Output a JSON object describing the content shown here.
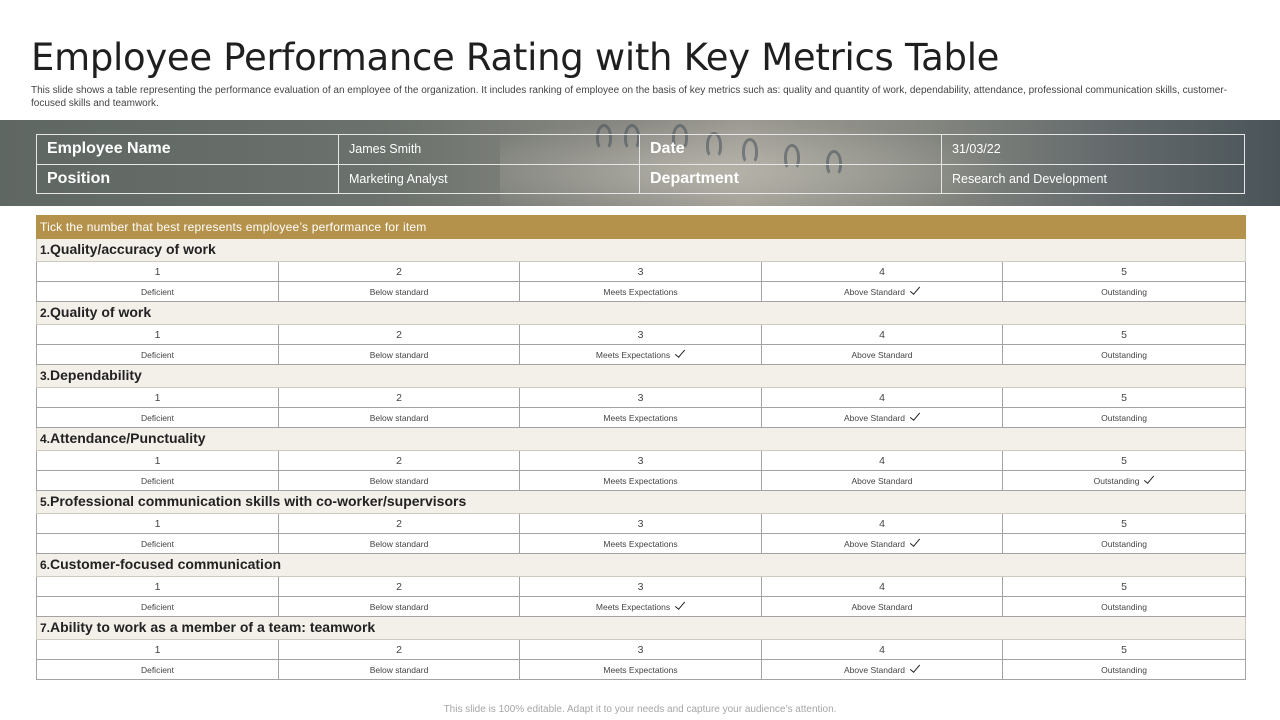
{
  "title": "Employee Performance Rating with Key Metrics Table",
  "subtitle": "This slide shows a table representing the performance evaluation of an employee of the organization. It includes ranking of employee on the basis of key metrics such as: quality and quantity of work, dependability, attendance, professional communication skills, customer-focused skills and teamwork.",
  "employee_info": {
    "name_label": "Employee Name",
    "name_value": "James Smith",
    "date_label": "Date",
    "date_value": "31/03/22",
    "position_label": "Position",
    "position_value": "Marketing Analyst",
    "department_label": "Department",
    "department_value": "Research and Development"
  },
  "instruction": "Tick the number that best represents employee’s performance for item",
  "scale": {
    "numbers": [
      "1",
      "2",
      "3",
      "4",
      "5"
    ],
    "labels": [
      "Deficient",
      "Below standard",
      "Meets Expectations",
      "Above Standard",
      "Outstanding"
    ]
  },
  "metrics": [
    {
      "num": "1.",
      "label": "Quality/accuracy of work",
      "rating": 4
    },
    {
      "num": "2.",
      "label": "Quality of work",
      "rating": 3
    },
    {
      "num": "3.",
      "label": "Dependability",
      "rating": 4
    },
    {
      "num": "4.",
      "label": "Attendance/Punctuality",
      "rating": 5
    },
    {
      "num": "5.",
      "label": "Professional communication skills with co-worker/supervisors",
      "rating": 4
    },
    {
      "num": "6.",
      "label": "Customer-focused communication",
      "rating": 3
    },
    {
      "num": "7.",
      "label": "Ability to work as a member of a team: teamwork",
      "rating": 4
    }
  ],
  "footer": "This slide is 100% editable. Adapt it to your needs and capture your audience’s attention.",
  "colors": {
    "header_fill": "#b5924b",
    "category_fill": "#f3f0ea",
    "band": "#6b716c"
  }
}
